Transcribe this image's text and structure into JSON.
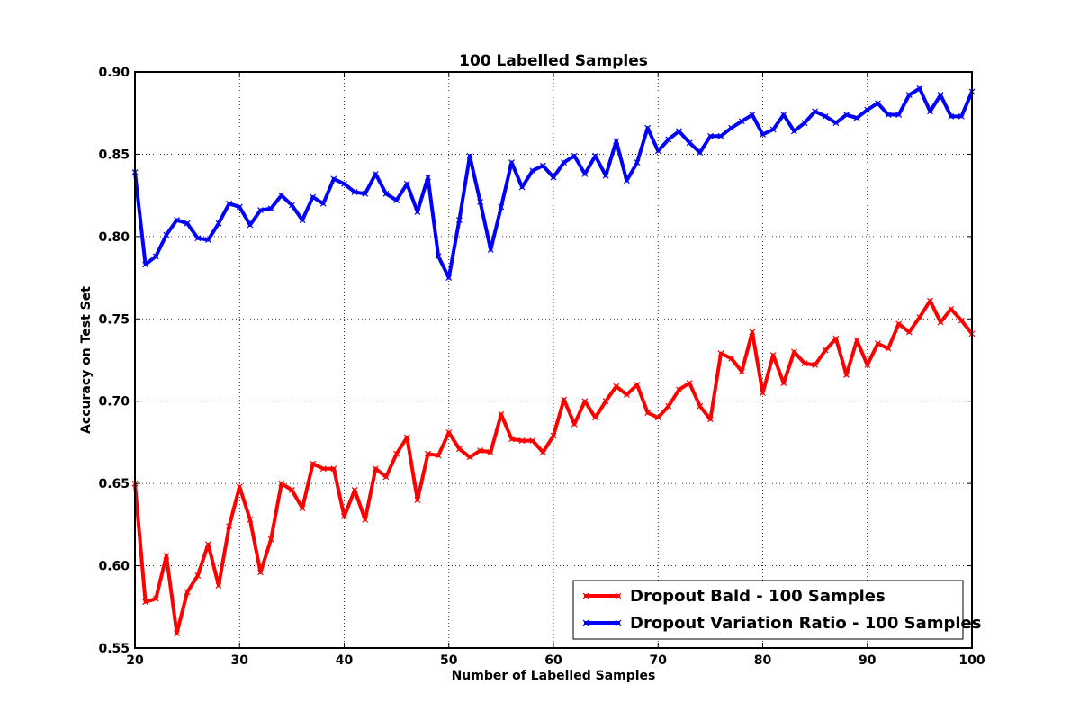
{
  "chart_data": {
    "type": "line",
    "title": "100 Labelled Samples",
    "xlabel": "Number of Labelled Samples",
    "ylabel": "Accuracy on Test Set",
    "xlim": [
      20,
      100
    ],
    "ylim": [
      0.55,
      0.9
    ],
    "xticks": [
      "20",
      "30",
      "40",
      "50",
      "60",
      "70",
      "80",
      "90",
      "100"
    ],
    "yticks": [
      "0.55",
      "0.60",
      "0.65",
      "0.70",
      "0.75",
      "0.80",
      "0.85",
      "0.90"
    ],
    "grid": true,
    "legend_position": "lower-right",
    "x": [
      20,
      21,
      22,
      23,
      24,
      25,
      26,
      27,
      28,
      29,
      30,
      31,
      32,
      33,
      34,
      35,
      36,
      37,
      38,
      39,
      40,
      41,
      42,
      43,
      44,
      45,
      46,
      47,
      48,
      49,
      50,
      51,
      52,
      53,
      54,
      55,
      56,
      57,
      58,
      59,
      60,
      61,
      62,
      63,
      64,
      65,
      66,
      67,
      68,
      69,
      70,
      71,
      72,
      73,
      74,
      75,
      76,
      77,
      78,
      79,
      80,
      81,
      82,
      83,
      84,
      85,
      86,
      87,
      88,
      89,
      90,
      91,
      92,
      93,
      94,
      95,
      96,
      97,
      98,
      99,
      100
    ],
    "series": [
      {
        "name": "Dropout Bald - 100 Samples",
        "color": "#ff0000",
        "values": [
          0.65,
          0.578,
          0.58,
          0.606,
          0.559,
          0.584,
          0.594,
          0.613,
          0.588,
          0.624,
          0.648,
          0.628,
          0.596,
          0.616,
          0.65,
          0.646,
          0.635,
          0.662,
          0.659,
          0.659,
          0.63,
          0.646,
          0.628,
          0.659,
          0.654,
          0.668,
          0.678,
          0.64,
          0.668,
          0.667,
          0.681,
          0.671,
          0.666,
          0.67,
          0.669,
          0.692,
          0.677,
          0.676,
          0.676,
          0.669,
          0.679,
          0.701,
          0.686,
          0.7,
          0.69,
          0.7,
          0.709,
          0.704,
          0.71,
          0.693,
          0.69,
          0.697,
          0.707,
          0.711,
          0.697,
          0.689,
          0.729,
          0.726,
          0.718,
          0.742,
          0.705,
          0.728,
          0.711,
          0.73,
          0.723,
          0.722,
          0.731,
          0.738,
          0.716,
          0.737,
          0.722,
          0.735,
          0.732,
          0.747,
          0.742,
          0.751,
          0.761,
          0.748,
          0.756,
          0.749,
          0.741
        ]
      },
      {
        "name": "Dropout Variation Ratio - 100 Samples",
        "color": "#0000ff",
        "values": [
          0.839,
          0.783,
          0.788,
          0.801,
          0.81,
          0.808,
          0.799,
          0.798,
          0.808,
          0.82,
          0.818,
          0.807,
          0.816,
          0.817,
          0.825,
          0.819,
          0.81,
          0.824,
          0.82,
          0.835,
          0.832,
          0.827,
          0.826,
          0.838,
          0.826,
          0.822,
          0.832,
          0.815,
          0.836,
          0.788,
          0.775,
          0.81,
          0.849,
          0.821,
          0.792,
          0.818,
          0.845,
          0.83,
          0.84,
          0.843,
          0.836,
          0.845,
          0.849,
          0.838,
          0.849,
          0.837,
          0.858,
          0.834,
          0.845,
          0.866,
          0.852,
          0.859,
          0.864,
          0.857,
          0.851,
          0.861,
          0.861,
          0.866,
          0.87,
          0.874,
          0.862,
          0.865,
          0.874,
          0.864,
          0.869,
          0.876,
          0.873,
          0.869,
          0.874,
          0.872,
          0.877,
          0.881,
          0.874,
          0.874,
          0.886,
          0.89,
          0.876,
          0.886,
          0.873,
          0.873,
          0.888
        ]
      }
    ]
  }
}
